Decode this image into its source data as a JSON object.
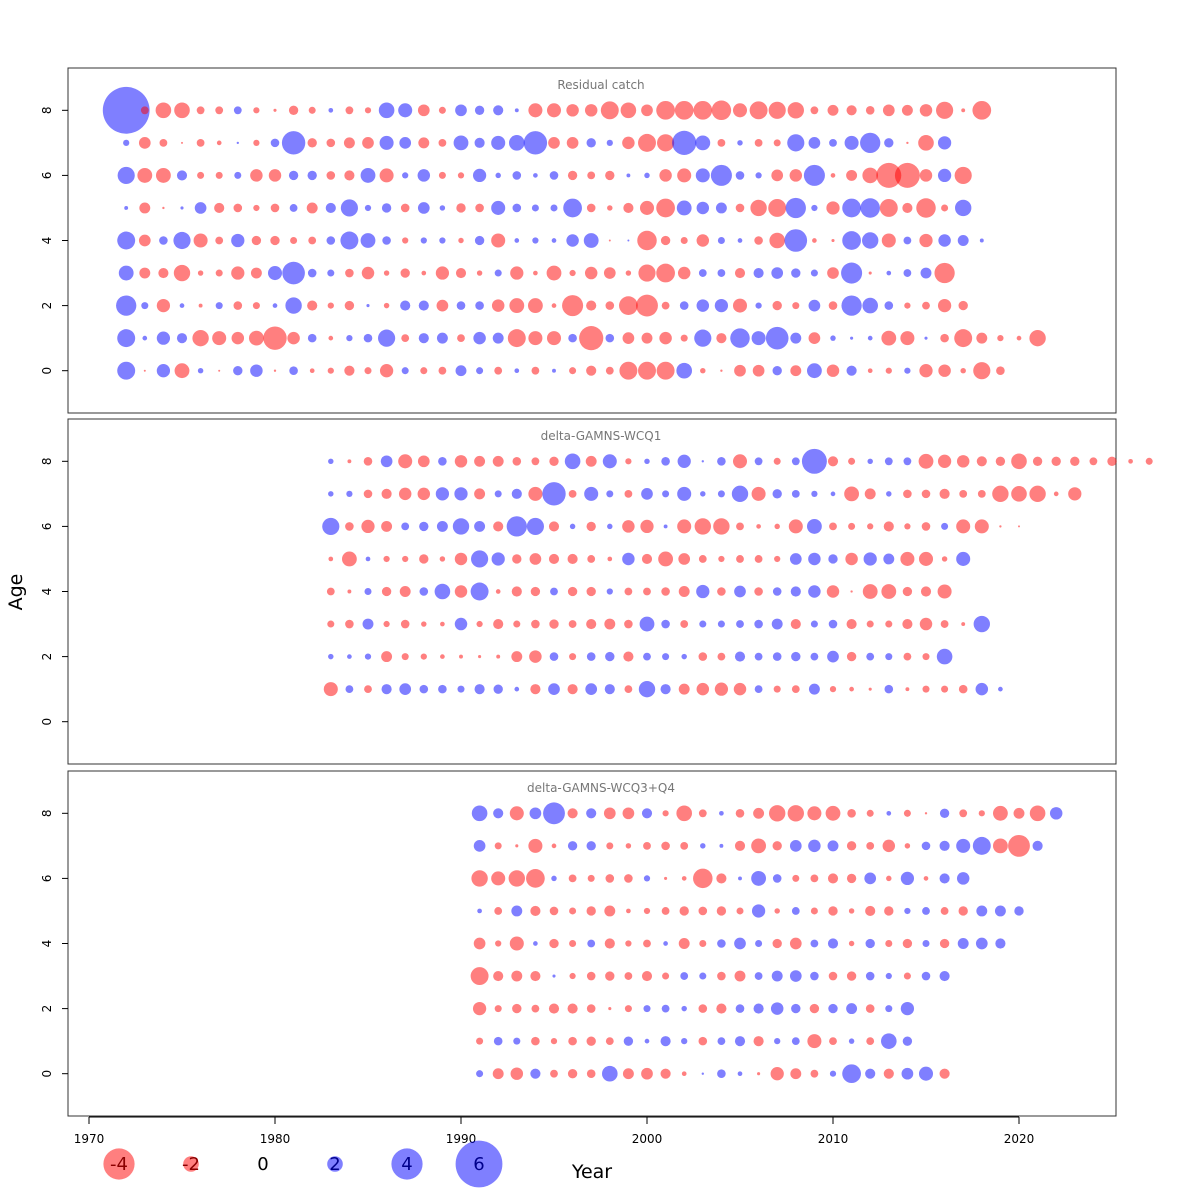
{
  "chart_data": {
    "type": "scatter",
    "xlabel": "Year",
    "ylabel": "Age",
    "xlim": [
      1969,
      2025
    ],
    "xticks": [
      1970,
      1980,
      1990,
      2000,
      2010,
      2020
    ],
    "ylim": [
      -1.3,
      9.3
    ],
    "yticks": [
      0,
      2,
      4,
      6,
      8
    ],
    "bubble_encoding": "radius proportional to |residual|; red = negative, blue = positive",
    "colors": {
      "negative": "#ff6a6a",
      "positive": "#6a6aff",
      "negative_legend_text": "#8b0000",
      "positive_legend_text": "#00008b"
    },
    "legend": {
      "placement": "bottom-left",
      "values": [
        -4,
        -2,
        0,
        2,
        4,
        6
      ]
    },
    "panels": [
      {
        "title": "Residual catch",
        "ages": [
          8,
          7,
          6,
          5,
          4,
          3,
          2,
          1,
          0
        ],
        "start_year": 1972,
        "values": [
          [
            6,
            -1,
            -2,
            -2,
            -1,
            -1,
            1,
            -0.8,
            -0.4,
            -1.2,
            -0.9,
            0.6,
            -1,
            -0.8,
            2,
            1.8,
            -1.5,
            -0.9,
            1.5,
            1.2,
            1.3,
            0.5,
            -1.8,
            -1.8,
            -1.6,
            -1.6,
            -2.3,
            -2,
            -1.5,
            -2.4,
            -2.4,
            -2.4,
            -2.5,
            -1.8,
            -2.3,
            -2.2,
            -2.1,
            -1,
            -1.4,
            -1.3,
            -1.1,
            -1.5,
            -1.4,
            -1.6,
            -2.2,
            -0.5,
            -2.4
          ],
          [
            0.8,
            -1.5,
            -1,
            -0.2,
            -1,
            -0.6,
            0.3,
            -0.8,
            1.1,
            3,
            -1.2,
            -1.1,
            -1.4,
            -1.5,
            1.8,
            1.5,
            -1.4,
            -1,
            1.9,
            1.3,
            1.8,
            2,
            3,
            -1.5,
            -1.5,
            1.2,
            0.8,
            -1.6,
            -2.3,
            -2.2,
            3.1,
            1.9,
            -1,
            0.7,
            -1,
            -0.9,
            2.2,
            1.5,
            1,
            1.8,
            2.6,
            1.2,
            -0.3,
            -2,
            1.7
          ],
          [
            2.2,
            -1.9,
            -1.9,
            1.3,
            -0.9,
            -0.9,
            0.9,
            -1.6,
            -1.6,
            1.2,
            1.2,
            -1.1,
            -1.3,
            1.9,
            -1.8,
            0.8,
            1.6,
            -0.9,
            -0.8,
            1.7,
            0.7,
            1.1,
            0.6,
            1.1,
            -1.2,
            -1,
            -1.2,
            0.5,
            0.7,
            -1.6,
            -1.8,
            1.8,
            2.7,
            1.1,
            0.8,
            -1.5,
            -1.6,
            2.7,
            -0.6,
            -1.4,
            -2,
            -3.2,
            -3.2,
            -1.6,
            1.7,
            -2.2
          ],
          [
            0.5,
            -1.4,
            -0.3,
            0.4,
            1.5,
            -1.3,
            -1.1,
            -0.8,
            -1.1,
            1,
            -1.4,
            1.3,
            2.2,
            0.8,
            1.2,
            -1.1,
            1.5,
            0.7,
            -1.2,
            -1.1,
            1.8,
            1.1,
            0.9,
            0.9,
            2.4,
            -1.1,
            -0.7,
            -1.3,
            -1.8,
            -2.4,
            1.9,
            1.6,
            1.4,
            -1.1,
            -2.1,
            -2.3,
            2.6,
            0.8,
            -1.7,
            2.4,
            2.5,
            -2.3,
            -1.3,
            -2.5,
            -0.9,
            2.1
          ],
          [
            2.3,
            -1.5,
            1.1,
            2.2,
            -1.8,
            -1,
            1.7,
            -1.2,
            -1.2,
            -0.9,
            -1,
            1.1,
            2.3,
            1.9,
            1.1,
            -0.8,
            0.8,
            0.8,
            -0.7,
            1.2,
            -1.8,
            0.6,
            0.8,
            0.6,
            1.6,
            1.9,
            -0.2,
            0.1,
            -2.5,
            -1.2,
            -0.9,
            -1.6,
            0.9,
            0.6,
            -1.1,
            -2,
            2.9,
            -0.6,
            -0.4,
            2.4,
            2.1,
            -1.8,
            1,
            -1.7,
            1.6,
            1.4,
            0.5
          ],
          [
            1.9,
            -1.4,
            -1.3,
            -2.1,
            -0.7,
            -0.9,
            -1.7,
            -1.4,
            1.8,
            2.9,
            1.1,
            0.9,
            -1.1,
            -1.6,
            -0.7,
            -1.2,
            -0.6,
            -1.7,
            -1.3,
            -0.7,
            0.9,
            -1.7,
            -0.6,
            -1.9,
            -0.8,
            -1.6,
            -1.5,
            -0.7,
            -2.2,
            -2.4,
            -1.6,
            1,
            1,
            -1.3,
            1.3,
            1.5,
            1.2,
            0.9,
            -1.5,
            2.7,
            -0.4,
            0.6,
            1,
            1.4,
            -2.6
          ],
          [
            2.6,
            0.9,
            -1.7,
            0.6,
            -0.5,
            0.9,
            -1.1,
            -0.9,
            0.6,
            2.1,
            -1.3,
            -0.8,
            -1.2,
            0.4,
            -0.7,
            1.3,
            1.3,
            -1.5,
            1.1,
            1.1,
            -1.6,
            -1.9,
            -1.9,
            -0.6,
            -2.7,
            -1.3,
            -1.1,
            -2.4,
            -2.8,
            -1,
            1.1,
            1.6,
            1.7,
            -1.8,
            0.8,
            -1.2,
            -0.9,
            1.5,
            -1.1,
            2.6,
            2,
            1.1,
            -0.8,
            -1,
            -1.7,
            -1.2
          ],
          [
            2.3,
            0.6,
            1.7,
            1.3,
            -2.1,
            -1.8,
            -1.6,
            -1.9,
            -3,
            -1.6,
            1.1,
            -0.6,
            0.8,
            1.1,
            2.2,
            -1,
            1.3,
            1.4,
            -1,
            1.6,
            1.4,
            -2.3,
            -1.8,
            -1.8,
            1.1,
            -3.1,
            1.1,
            -1.5,
            -1.4,
            -1.6,
            -0.9,
            2.2,
            -1.3,
            2.5,
            1.8,
            2.9,
            1.4,
            -1.5,
            0.7,
            0.4,
            0.6,
            -1.9,
            -1.8,
            0.4,
            -1.1,
            -2.3,
            -1.4,
            -0.8,
            -0.6,
            -2.1
          ],
          [
            2.3,
            -0.2,
            1.7,
            -1.9,
            0.7,
            -0.2,
            1.2,
            1.6,
            -0.3,
            1.1,
            -0.6,
            -0.8,
            -1.3,
            -0.9,
            -1.7,
            0.9,
            -0.9,
            -1,
            1.4,
            0.9,
            -1,
            0.6,
            -1,
            0.5,
            -0.9,
            -1.3,
            -1,
            -2.3,
            -2.3,
            -2.3,
            2,
            -0.7,
            -0.3,
            -1.5,
            -1.5,
            1.2,
            -1.4,
            1.9,
            -1.6,
            1.3,
            -0.6,
            -0.8,
            0.8,
            -1.7,
            -1.6,
            -0.7,
            -2.2,
            -1.1
          ]
        ]
      },
      {
        "title": "delta-GAMNS-WCQ1",
        "ages": [
          8,
          7,
          6,
          5,
          4,
          3,
          2,
          1
        ],
        "start_year": 1983,
        "values": [
          [
            0.7,
            -0.5,
            -1.1,
            1.5,
            -1.8,
            -1.5,
            1.1,
            -1.6,
            -1.4,
            -1.4,
            -1.1,
            -1,
            -1.2,
            2,
            -1.4,
            1.8,
            -0.8,
            0.7,
            1.1,
            1.7,
            0.3,
            1.1,
            -1.8,
            1,
            -0.9,
            1,
            3.2,
            -1.3,
            -0.9,
            0.7,
            1,
            1,
            -1.9,
            -1.7,
            -1.6,
            -1.3,
            -1.2,
            -2,
            -1.2,
            -1.2,
            -1.2,
            -1,
            -1.2,
            -0.6,
            -0.9
          ],
          [
            0.7,
            0.8,
            -1.1,
            -1.3,
            -1.6,
            -1.6,
            1.7,
            1.7,
            -1.4,
            0.9,
            1.3,
            -1.8,
            3,
            -1,
            1.8,
            0.9,
            -1,
            1.5,
            0.9,
            1.8,
            0.7,
            0.9,
            2.1,
            -1.8,
            1.2,
            1,
            0.8,
            0.6,
            -1.9,
            -1.4,
            0.7,
            -1.1,
            -1.1,
            -1.3,
            -1,
            -1,
            -2.1,
            -2,
            -2.1,
            -0.6,
            -1.7
          ],
          [
            2.2,
            -1.1,
            -1.7,
            -1.4,
            1,
            1.2,
            1.4,
            2.1,
            1.4,
            -1.3,
            2.6,
            2.2,
            -1.3,
            0.7,
            -1.2,
            0.7,
            -1.6,
            -1.7,
            0.5,
            -1.8,
            -2.1,
            -2.1,
            -1,
            -0.6,
            -0.7,
            -1.8,
            1.9,
            -1,
            -0.9,
            -0.8,
            -1.3,
            -0.8,
            -1.1,
            0.9,
            -1.8,
            -1.8,
            -0.3,
            -0.2
          ],
          [
            -0.6,
            -1.9,
            0.6,
            -0.8,
            -0.8,
            -1.2,
            -0.7,
            -1.6,
            2.2,
            1.7,
            -1.2,
            -1.5,
            -1.3,
            -1.3,
            -1,
            -0.6,
            1.6,
            -1.3,
            -1.9,
            -1.5,
            -1,
            -0.8,
            -1,
            -1,
            -0.8,
            1.5,
            1.6,
            1.2,
            -1.6,
            1.7,
            1.4,
            -1.8,
            -1.8,
            -0.7,
            1.8
          ],
          [
            -1,
            -0.5,
            0.9,
            -1.2,
            -1.4,
            1.1,
            2,
            -1.6,
            2.3,
            -0.6,
            -1.3,
            -1.2,
            1,
            -1.2,
            -1.2,
            0.8,
            -1,
            -1,
            -1.1,
            -1.4,
            1.7,
            -1.1,
            1.5,
            -1.1,
            1.1,
            1.3,
            1.6,
            -1.6,
            -0.3,
            -1.9,
            -1.9,
            -1.2,
            -1.3,
            -1.8
          ],
          [
            -0.9,
            -1.1,
            1.4,
            -0.8,
            -1.1,
            -0.7,
            -0.6,
            1.6,
            -0.8,
            -1.3,
            -0.9,
            -1.1,
            -1.2,
            -1,
            -1.3,
            -1.4,
            -1.1,
            1.9,
            1.1,
            -1,
            0.9,
            0.9,
            1,
            1.1,
            1.4,
            -1.3,
            0.9,
            1.1,
            -1.3,
            -0.9,
            -0.9,
            -1.3,
            -1.6,
            -1,
            -0.5,
            2.1
          ],
          [
            0.7,
            0.6,
            0.8,
            -1.4,
            -0.9,
            -0.8,
            -0.6,
            -0.5,
            -0.4,
            -0.5,
            -1.4,
            -1.6,
            1.1,
            -0.9,
            1.1,
            1.2,
            -1.3,
            1,
            0.9,
            0.7,
            -1.1,
            -1,
            1.3,
            1,
            1.1,
            1.2,
            1,
            1.5,
            -1.2,
            1,
            0.9,
            -1,
            -0.9,
            2
          ],
          [
            -1.8,
            1,
            -1,
            1.3,
            1.5,
            1.1,
            1.1,
            0.9,
            1.3,
            1.2,
            0.6,
            -1.3,
            1.5,
            -1.3,
            1.5,
            1.3,
            -1,
            2.1,
            1.3,
            -1.4,
            -1.6,
            -1.7,
            -1.6,
            1,
            -0.9,
            -1,
            1.4,
            -0.8,
            -0.6,
            -0.4,
            1.1,
            -0.5,
            -0.9,
            -0.9,
            -1.1,
            1.6,
            0.6
          ]
        ]
      },
      {
        "title": "delta-GAMNS-WCQ3+Q4",
        "ages": [
          8,
          7,
          6,
          5,
          4,
          3,
          2,
          1,
          0
        ],
        "start_year": 1991,
        "values": [
          [
            2,
            1.3,
            -1.8,
            1.5,
            2.8,
            -1.3,
            1.3,
            -1.5,
            -1.5,
            1.3,
            -0.8,
            -2,
            -1,
            0.6,
            -1.1,
            -1.4,
            -2.1,
            -2.1,
            -1.8,
            -1.9,
            -1.1,
            -0.9,
            0.6,
            -0.9,
            -0.3,
            1.2,
            -1,
            -0.8,
            -1.9,
            -1.4,
            -2,
            1.6
          ],
          [
            1.5,
            -0.9,
            -0.4,
            -1.8,
            -0.6,
            1.2,
            1.2,
            -0.9,
            -0.7,
            -1,
            -1.1,
            -1,
            0.7,
            0.5,
            -1.3,
            -1.9,
            -1.2,
            1.5,
            1.6,
            1.4,
            -1.2,
            -1,
            -1.6,
            -0.7,
            1.1,
            1.3,
            1.8,
            2.3,
            -1.9,
            -2.8,
            1.3
          ],
          [
            -2.1,
            -1.8,
            -2.1,
            -2.4,
            0.7,
            -1,
            -0.9,
            -1.1,
            -1.1,
            0.8,
            -0.4,
            -0.6,
            -2.5,
            -1.3,
            0.5,
            1.9,
            1.1,
            -0.9,
            -1,
            -1.3,
            -1.2,
            1.5,
            -0.7,
            1.7,
            -0.6,
            1.3,
            1.6
          ],
          [
            0.6,
            -1,
            1.4,
            -1.3,
            -1.1,
            -0.9,
            -1.2,
            -1.4,
            -0.6,
            -0.8,
            -1,
            -1.2,
            -1.1,
            -1.2,
            -0.9,
            1.7,
            -0.7,
            1,
            -0.9,
            -1.2,
            -0.7,
            -1.3,
            -1.2,
            0.8,
            1,
            -1,
            -1.2,
            1.4,
            1.4,
            1.2
          ],
          [
            -1.5,
            -0.8,
            -1.8,
            0.6,
            -1.2,
            -0.9,
            1,
            -1.3,
            -0.8,
            -1,
            0.6,
            -1.4,
            -0.9,
            1.1,
            1.5,
            0.9,
            -1.2,
            -1.5,
            1,
            1.3,
            -0.7,
            1.2,
            -0.9,
            -1.2,
            0.9,
            -1.2,
            1.4,
            1.5,
            1.3
          ],
          [
            -2.3,
            -1.3,
            -1.4,
            -1.3,
            0.4,
            -0.8,
            -1.1,
            -1.2,
            -1,
            -1.3,
            -0.9,
            1,
            0.9,
            -1.1,
            -1.4,
            1,
            1.4,
            1.5,
            1.1,
            -1.1,
            -1.2,
            1.1,
            0.8,
            -0.9,
            1.1,
            1.3
          ],
          [
            -1.7,
            -0.9,
            -1.2,
            -1,
            -1.3,
            -1.3,
            -1.1,
            -0.4,
            -0.9,
            0.9,
            1,
            0.7,
            -1.1,
            -1.3,
            1.1,
            1.3,
            1.6,
            1.2,
            -1.2,
            1.2,
            1.4,
            -1.1,
            0.9,
            1.7
          ],
          [
            -0.9,
            1.1,
            0.9,
            -1.1,
            -0.8,
            -1.1,
            -1.2,
            -1,
            1.2,
            0.6,
            1.3,
            0.8,
            -1.1,
            1,
            1.3,
            -1.3,
            0.8,
            1,
            -1.8,
            -1,
            0.7,
            -1,
            2,
            1.2
          ],
          [
            0.9,
            -1.4,
            -1.6,
            1.3,
            -1,
            -1.2,
            -1.1,
            2,
            -1.4,
            -1.5,
            -1.3,
            -0.6,
            0.3,
            1.1,
            0.6,
            -0.4,
            -1.7,
            -1.4,
            -1,
            0.8,
            2.4,
            1.3,
            -1.3,
            1.5,
            1.8,
            -1.3
          ]
        ]
      }
    ]
  }
}
